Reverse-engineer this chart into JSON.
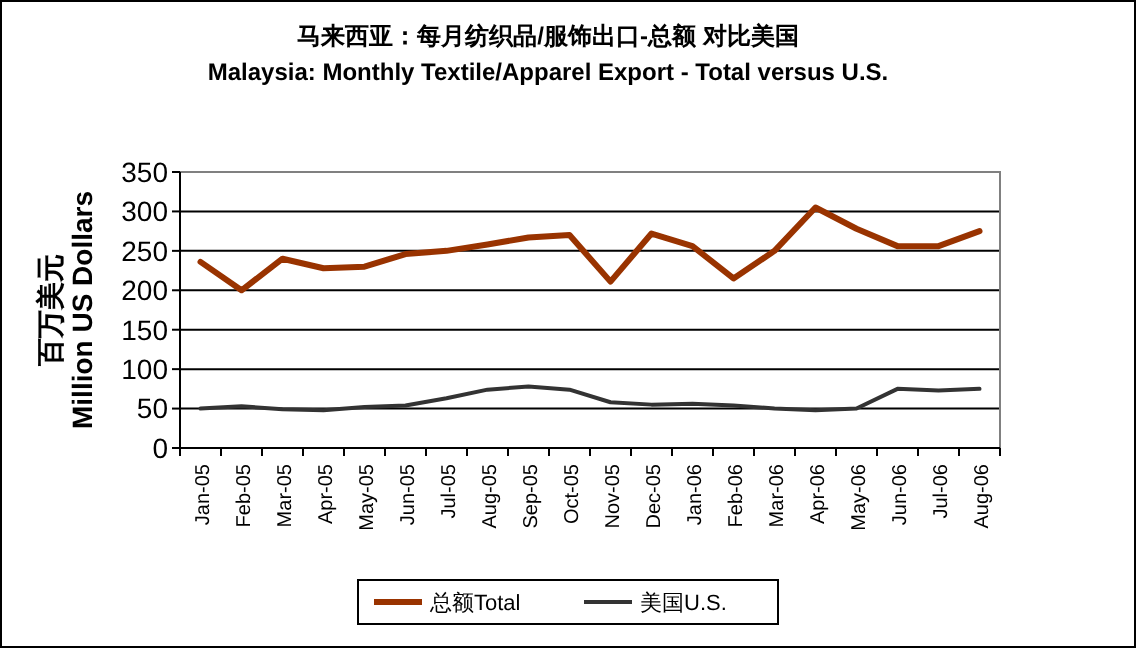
{
  "chart_data": {
    "type": "line",
    "title": "马来西亚：每月纺织品/服饰出口-总额 对比美国",
    "subtitle": "Malaysia: Monthly Textile/Apparel Export - Total versus U.S.",
    "ylabel": "百万美元 Million US Dollars",
    "categories": [
      "Jan-05",
      "Feb-05",
      "Mar-05",
      "Apr-05",
      "May-05",
      "Jun-05",
      "Jul-05",
      "Aug-05",
      "Sep-05",
      "Oct-05",
      "Nov-05",
      "Dec-05",
      "Jan-06",
      "Feb-06",
      "Mar-06",
      "Apr-06",
      "May-06",
      "Jun-06",
      "Jul-06",
      "Aug-06"
    ],
    "series": [
      {
        "name": "总额Total",
        "color": "#993300",
        "values": [
          236,
          200,
          240,
          228,
          230,
          246,
          250,
          258,
          267,
          270,
          211,
          272,
          256,
          215,
          250,
          305,
          278,
          256,
          256,
          275
        ]
      },
      {
        "name": "美国U.S.",
        "color": "#333333",
        "values": [
          50,
          53,
          49,
          48,
          52,
          54,
          63,
          74,
          78,
          74,
          58,
          55,
          56,
          54,
          50,
          48,
          50,
          75,
          73,
          75
        ]
      }
    ],
    "ylim": [
      0,
      350
    ],
    "yticks": [
      0,
      50,
      100,
      150,
      200,
      250,
      300,
      350
    ],
    "grid": "y",
    "legend": "bottom",
    "marker": "none",
    "line_style": "solid"
  }
}
